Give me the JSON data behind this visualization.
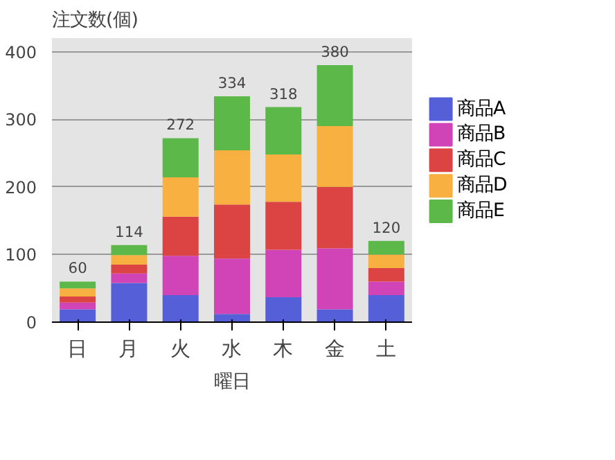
{
  "chart_data": {
    "type": "bar",
    "stacked": true,
    "ylabel": "注文数(個)",
    "xlabel": "曜日",
    "categories": [
      "日",
      "月",
      "火",
      "水",
      "木",
      "金",
      "土"
    ],
    "series": [
      {
        "name": "商品A",
        "color": "#5560d8",
        "values": [
          19,
          58,
          40,
          12,
          37,
          19,
          40
        ]
      },
      {
        "name": "商品B",
        "color": "#d044b8",
        "values": [
          10,
          14,
          58,
          82,
          70,
          90,
          20
        ]
      },
      {
        "name": "商品C",
        "color": "#dc4444",
        "values": [
          9,
          13,
          58,
          80,
          71,
          91,
          20
        ]
      },
      {
        "name": "商品D",
        "color": "#f8b040",
        "values": [
          12,
          14,
          58,
          80,
          70,
          90,
          20
        ]
      },
      {
        "name": "商品E",
        "color": "#5cb848",
        "values": [
          10,
          15,
          58,
          80,
          70,
          90,
          20
        ]
      }
    ],
    "totals": [
      "60",
      "114",
      "272",
      "334",
      "318",
      "380",
      "120"
    ],
    "ylim": [
      0,
      420
    ],
    "yticks": [
      0,
      100,
      200,
      300,
      400
    ],
    "grid": "y",
    "legend": "right"
  }
}
